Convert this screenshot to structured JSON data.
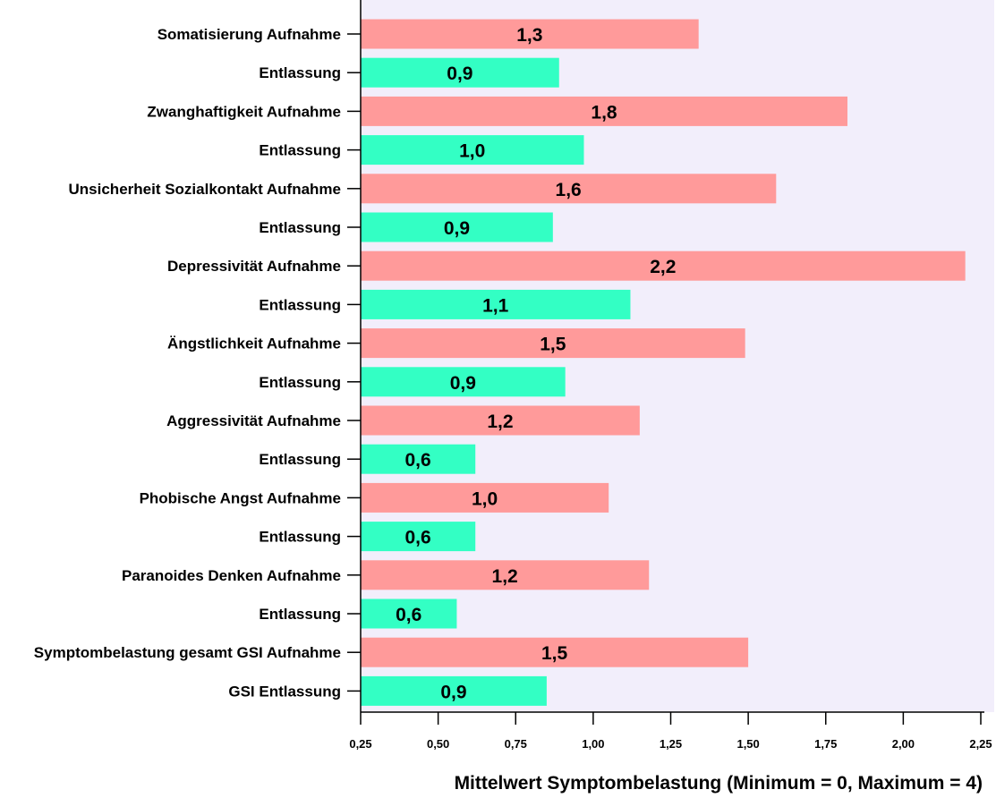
{
  "chart_data": {
    "type": "bar",
    "orientation": "horizontal",
    "xlabel": "Mittelwert Symptombelastung (Minimum = 0, Maximum = 4)",
    "xlim": [
      0.25,
      2.25
    ],
    "xticks": [
      "0,25",
      "0,50",
      "0,75",
      "1,00",
      "1,25",
      "1,50",
      "1,75",
      "2,00",
      "2,25"
    ],
    "categories": [
      "Somatisierung Aufnahme",
      "Entlassung",
      "Zwanghaftigkeit Aufnahme",
      "Entlassung",
      "Unsicherheit Sozialkontakt Aufnahme",
      "Entlassung",
      "Depressivität Aufnahme",
      "Entlassung",
      "Ängstlichkeit Aufnahme",
      "Entlassung",
      "Aggressivität Aufnahme",
      "Entlassung",
      "Phobische Angst Aufnahme",
      "Entlassung",
      "Paranoides Denken Aufnahme",
      "Entlassung",
      "Symptombelastung gesamt GSI Aufnahme",
      "GSI Entlassung"
    ],
    "values": [
      1.34,
      0.89,
      1.82,
      0.97,
      1.59,
      0.87,
      2.2,
      1.12,
      1.49,
      0.91,
      1.15,
      0.62,
      1.05,
      0.62,
      1.18,
      0.56,
      1.5,
      0.85
    ],
    "value_labels": [
      "1,3",
      "0,9",
      "1,8",
      "1,0",
      "1,6",
      "0,9",
      "2,2",
      "1,1",
      "1,5",
      "0,9",
      "1,2",
      "0,6",
      "1,0",
      "0,6",
      "1,2",
      "0,6",
      "1,5",
      "0,9"
    ],
    "colors": {
      "aufnahme": "#ff9a9a",
      "entlassung": "#33ffc4",
      "plot_background": "#f2eefb"
    },
    "grid": false
  }
}
